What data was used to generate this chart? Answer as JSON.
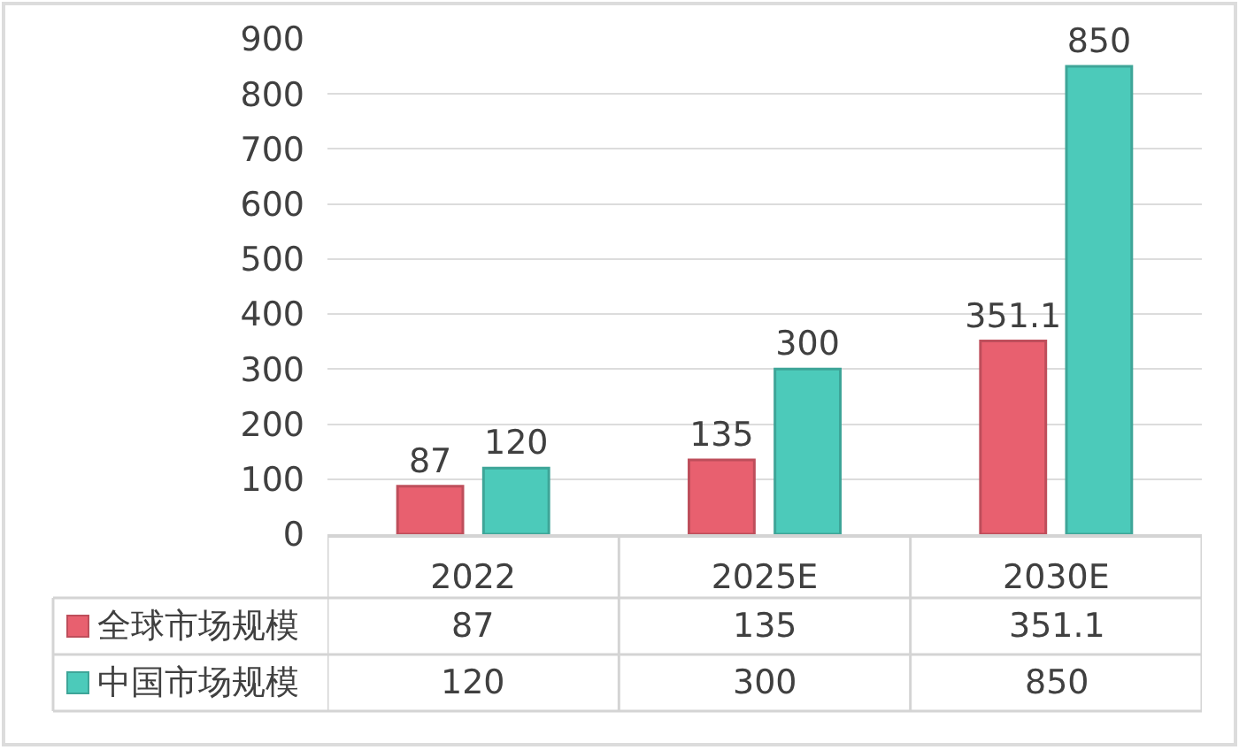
{
  "chart_data": {
    "type": "bar",
    "categories": [
      "2022",
      "2025E",
      "2030E"
    ],
    "series": [
      {
        "name": "全球市场规模",
        "color": "#e8606f",
        "values": [
          87,
          135,
          351.1
        ],
        "value_labels": [
          "87",
          "135",
          "351.1"
        ]
      },
      {
        "name": "中国市场规模",
        "color": "#4ccaba",
        "values": [
          120,
          300,
          850
        ],
        "value_labels": [
          "120",
          "300",
          "850"
        ]
      }
    ],
    "ylim": [
      0,
      900
    ],
    "yticks": [
      0,
      100,
      200,
      300,
      400,
      500,
      600,
      700,
      800,
      900
    ],
    "grid": "y",
    "legend": "bottom left",
    "annotations": [
      "87",
      "135",
      "351.1",
      "120",
      "300",
      "850"
    ]
  }
}
